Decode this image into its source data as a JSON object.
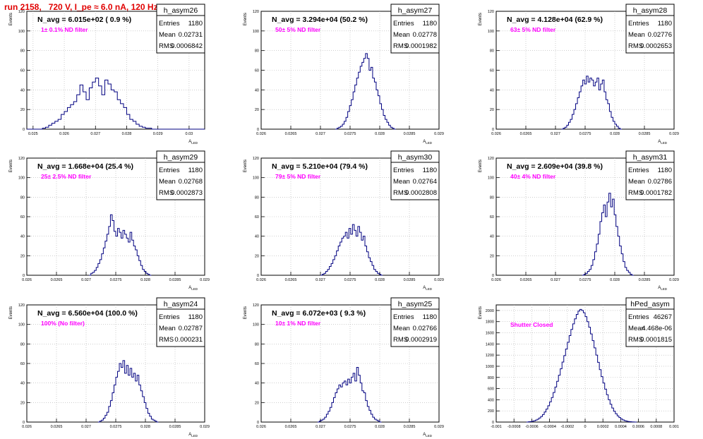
{
  "header": {
    "title": "run 2158,   720 V, I_pe ≈ 6.0 nA, 120 Hz"
  },
  "colors": {
    "hist": "#000080",
    "annotation": "#ff00ff",
    "title": "#e00000",
    "frame": "#000000"
  },
  "chart_data": [
    {
      "type": "histogram",
      "name": "h_asym26",
      "stats": {
        "Entries": "1180",
        "Mean": "0.02731",
        "RMS": "0.0006842"
      },
      "navg_text": "N_avg = 6.015e+02 ( 0.9 %)",
      "filter_text": "1± 0.1% ND filter",
      "xlabel": "A_LED",
      "ylabel": "Events",
      "xlim": [
        0.0248,
        0.0305
      ],
      "ylim": [
        0,
        120
      ],
      "xticks": [
        0.025,
        0.026,
        0.027,
        0.028,
        0.029,
        0.03
      ],
      "xtick_labels": [
        "0.025",
        "0.026",
        "0.027",
        "0.028",
        "0.029",
        "0.03"
      ],
      "yticks": [
        0,
        20,
        40,
        60,
        80,
        100,
        120
      ],
      "ytick_labels": [
        "0",
        "20",
        "40",
        "60",
        "80",
        "100",
        "120"
      ],
      "bin_start": 0.0248,
      "bin_width": 0.0001,
      "values": [
        0,
        0,
        0,
        0,
        0,
        1,
        2,
        4,
        6,
        8,
        10,
        15,
        18,
        22,
        25,
        28,
        35,
        45,
        38,
        30,
        42,
        48,
        52,
        44,
        35,
        50,
        46,
        40,
        38,
        30,
        26,
        22,
        15,
        10,
        8,
        5,
        3,
        2,
        1,
        1,
        0,
        0,
        0,
        0,
        0,
        0,
        0,
        0,
        0,
        0,
        0,
        0,
        0,
        0,
        0,
        0,
        0
      ]
    },
    {
      "type": "histogram",
      "name": "h_asym27",
      "stats": {
        "Entries": "1180",
        "Mean": "0.02778",
        "RMS": "0.0001982"
      },
      "navg_text": "N_avg = 3.294e+04 (50.2 %)",
      "filter_text": "50± 5% ND filter",
      "xlabel": "A_LED",
      "ylabel": "Events",
      "xlim": [
        0.026,
        0.029
      ],
      "ylim": [
        0,
        120
      ],
      "xticks": [
        0.026,
        0.0265,
        0.027,
        0.0275,
        0.028,
        0.0285,
        0.029
      ],
      "xtick_labels": [
        "0.026",
        "0.0265",
        "0.027",
        "0.0275",
        "0.028",
        "0.0285",
        "0.029"
      ],
      "yticks": [
        0,
        20,
        40,
        60,
        80,
        100,
        120
      ],
      "ytick_labels": [
        "0",
        "20",
        "40",
        "60",
        "80",
        "100",
        "120"
      ],
      "bin_start": 0.02725,
      "bin_width": 3e-05,
      "values": [
        0,
        1,
        2,
        3,
        5,
        8,
        12,
        18,
        24,
        30,
        38,
        45,
        52,
        58,
        64,
        68,
        72,
        77,
        72,
        60,
        63,
        52,
        48,
        40,
        34,
        26,
        20,
        14,
        10,
        7,
        4,
        2,
        1,
        0
      ]
    },
    {
      "type": "histogram",
      "name": "h_asym28",
      "stats": {
        "Entries": "1180",
        "Mean": "0.02776",
        "RMS": "0.0002653"
      },
      "navg_text": "N_avg = 4.128e+04 (62.9 %)",
      "filter_text": "63± 5% ND filter",
      "xlabel": "A_LED",
      "ylabel": "Events",
      "xlim": [
        0.026,
        0.029
      ],
      "ylim": [
        0,
        120
      ],
      "xticks": [
        0.026,
        0.0265,
        0.027,
        0.0275,
        0.028,
        0.0285,
        0.029
      ],
      "xtick_labels": [
        "0.026",
        "0.0265",
        "0.027",
        "0.0275",
        "0.028",
        "0.0285",
        "0.029"
      ],
      "yticks": [
        0,
        20,
        40,
        60,
        80,
        100,
        120
      ],
      "ytick_labels": [
        "0",
        "20",
        "40",
        "60",
        "80",
        "100",
        "120"
      ],
      "bin_start": 0.0271,
      "bin_width": 3e-05,
      "values": [
        0,
        1,
        2,
        4,
        7,
        10,
        15,
        20,
        26,
        32,
        38,
        44,
        50,
        46,
        54,
        48,
        52,
        50,
        44,
        48,
        52,
        40,
        46,
        50,
        38,
        30,
        26,
        18,
        12,
        8,
        5,
        3,
        1,
        0
      ]
    },
    {
      "type": "histogram",
      "name": "h_asym29",
      "stats": {
        "Entries": "1180",
        "Mean": "0.02768",
        "RMS": "0.0002873"
      },
      "navg_text": "N_avg = 1.668e+04 (25.4 %)",
      "filter_text": "25± 2.5% ND filter",
      "xlabel": "A_LED",
      "ylabel": "Events",
      "xlim": [
        0.026,
        0.029
      ],
      "ylim": [
        0,
        120
      ],
      "xticks": [
        0.026,
        0.0265,
        0.027,
        0.0275,
        0.028,
        0.0285,
        0.029
      ],
      "xtick_labels": [
        "0.026",
        "0.0265",
        "0.027",
        "0.0275",
        "0.028",
        "0.0285",
        "0.029"
      ],
      "yticks": [
        0,
        20,
        40,
        60,
        80,
        100,
        120
      ],
      "ytick_labels": [
        "0",
        "20",
        "40",
        "60",
        "80",
        "100",
        "120"
      ],
      "bin_start": 0.02705,
      "bin_width": 3e-05,
      "values": [
        0,
        2,
        3,
        5,
        8,
        12,
        16,
        22,
        28,
        35,
        42,
        50,
        62,
        56,
        45,
        40,
        48,
        44,
        38,
        46,
        42,
        38,
        34,
        44,
        36,
        30,
        26,
        20,
        15,
        10,
        6,
        4,
        2,
        1,
        0
      ]
    },
    {
      "type": "histogram",
      "name": "h_asym30",
      "stats": {
        "Entries": "1180",
        "Mean": "0.02764",
        "RMS": "0.0002808"
      },
      "navg_text": "N_avg = 5.210e+04 (79.4 %)",
      "filter_text": "79± 5% ND filter",
      "xlabel": "A_LED",
      "ylabel": "Events",
      "xlim": [
        0.026,
        0.029
      ],
      "ylim": [
        0,
        120
      ],
      "xticks": [
        0.026,
        0.0265,
        0.027,
        0.0275,
        0.028,
        0.0285,
        0.029
      ],
      "xtick_labels": [
        "0.026",
        "0.0265",
        "0.027",
        "0.0275",
        "0.028",
        "0.0285",
        "0.029"
      ],
      "yticks": [
        0,
        20,
        40,
        60,
        80,
        100,
        120
      ],
      "ytick_labels": [
        "0",
        "20",
        "40",
        "60",
        "80",
        "100",
        "120"
      ],
      "bin_start": 0.027,
      "bin_width": 3e-05,
      "values": [
        0,
        1,
        2,
        4,
        6,
        9,
        12,
        16,
        20,
        25,
        30,
        34,
        38,
        40,
        44,
        38,
        48,
        42,
        52,
        46,
        40,
        50,
        44,
        36,
        40,
        30,
        24,
        18,
        14,
        10,
        6,
        4,
        2,
        1,
        0
      ]
    },
    {
      "type": "histogram",
      "name": "h_asym31",
      "stats": {
        "Entries": "1180",
        "Mean": "0.02786",
        "RMS": "0.0001782"
      },
      "navg_text": "N_avg = 2.609e+04 (39.8 %)",
      "filter_text": "40± 4% ND filter",
      "xlabel": "A_LED",
      "ylabel": "Events",
      "xlim": [
        0.026,
        0.029
      ],
      "ylim": [
        0,
        120
      ],
      "xticks": [
        0.026,
        0.0265,
        0.027,
        0.0275,
        0.028,
        0.0285,
        0.029
      ],
      "xtick_labels": [
        "0.026",
        "0.0265",
        "0.027",
        "0.0275",
        "0.028",
        "0.0285",
        "0.029"
      ],
      "yticks": [
        0,
        20,
        40,
        60,
        80,
        100,
        120
      ],
      "ytick_labels": [
        "0",
        "20",
        "40",
        "60",
        "80",
        "100",
        "120"
      ],
      "bin_start": 0.02745,
      "bin_width": 3e-05,
      "values": [
        0,
        1,
        2,
        4,
        6,
        10,
        16,
        24,
        32,
        42,
        55,
        64,
        72,
        60,
        75,
        84,
        70,
        78,
        62,
        50,
        40,
        30,
        22,
        14,
        8,
        5,
        3,
        1,
        0
      ]
    },
    {
      "type": "histogram",
      "name": "h_asym24",
      "stats": {
        "Entries": "1180",
        "Mean": "0.02787",
        "RMS": "0.000231"
      },
      "navg_text": "N_avg = 6.560e+04 (100.0 %)",
      "filter_text": "100% (No filter)",
      "xlabel": "A_LED",
      "ylabel": "Events",
      "xlim": [
        0.026,
        0.029
      ],
      "ylim": [
        0,
        120
      ],
      "xticks": [
        0.026,
        0.0265,
        0.027,
        0.0275,
        0.028,
        0.0285,
        0.029
      ],
      "xtick_labels": [
        "0.026",
        "0.0265",
        "0.027",
        "0.0275",
        "0.028",
        "0.0285",
        "0.029"
      ],
      "yticks": [
        0,
        20,
        40,
        60,
        80,
        100,
        120
      ],
      "ytick_labels": [
        "0",
        "20",
        "40",
        "60",
        "80",
        "100",
        "120"
      ],
      "bin_start": 0.0272,
      "bin_width": 3e-05,
      "values": [
        0,
        1,
        2,
        4,
        7,
        10,
        16,
        22,
        30,
        38,
        46,
        52,
        60,
        56,
        63,
        50,
        58,
        48,
        55,
        46,
        50,
        42,
        48,
        38,
        32,
        26,
        20,
        14,
        9,
        6,
        3,
        2,
        1,
        0
      ]
    },
    {
      "type": "histogram",
      "name": "h_asym25",
      "stats": {
        "Entries": "1180",
        "Mean": "0.02766",
        "RMS": "0.0002919"
      },
      "navg_text": "N_avg = 6.072e+03 ( 9.3 %)",
      "filter_text": "10± 1% ND filter",
      "xlabel": "A_LED",
      "ylabel": "Events",
      "xlim": [
        0.026,
        0.029
      ],
      "ylim": [
        0,
        120
      ],
      "xticks": [
        0.026,
        0.0265,
        0.027,
        0.0275,
        0.028,
        0.0285,
        0.029
      ],
      "xtick_labels": [
        "0.026",
        "0.0265",
        "0.027",
        "0.0275",
        "0.028",
        "0.0285",
        "0.029"
      ],
      "yticks": [
        0,
        20,
        40,
        60,
        80,
        100,
        120
      ],
      "ytick_labels": [
        "0",
        "20",
        "40",
        "60",
        "80",
        "100",
        "120"
      ],
      "bin_start": 0.02695,
      "bin_width": 3e-05,
      "values": [
        0,
        1,
        2,
        3,
        5,
        8,
        11,
        15,
        20,
        25,
        30,
        34,
        38,
        36,
        40,
        42,
        38,
        44,
        40,
        46,
        50,
        42,
        56,
        48,
        40,
        32,
        30,
        22,
        16,
        12,
        8,
        5,
        3,
        2,
        1,
        0
      ]
    },
    {
      "type": "histogram",
      "name": "hPed_asym",
      "stats": {
        "Entries": "46267",
        "Mean": "4.468e-06",
        "RMS": "0.0001815"
      },
      "navg_text": "",
      "filter_text": "Shutter Closed",
      "xlabel": "",
      "ylabel": "Events",
      "xlim": [
        -0.001,
        0.001
      ],
      "ylim": [
        0,
        2100
      ],
      "xticks": [
        -0.001,
        -0.0008,
        -0.0006,
        -0.0004,
        -0.0002,
        0,
        0.0002,
        0.0004,
        0.0006,
        0.0008,
        0.001
      ],
      "xtick_labels": [
        "-0.001",
        "-0.0008",
        "-0.0006",
        "-0.0004",
        "-0.0002",
        "0",
        "0.0002",
        "0.0004",
        "0.0006",
        "0.0008",
        "0.001"
      ],
      "yticks": [
        0,
        200,
        400,
        600,
        800,
        1000,
        1200,
        1400,
        1600,
        1800,
        2000
      ],
      "ytick_labels": [
        "0",
        "200",
        "400",
        "600",
        "800",
        "1000",
        "1200",
        "1400",
        "1600",
        "1800",
        "2000"
      ],
      "bin_start": -0.00066,
      "bin_width": 2e-05,
      "values": [
        0,
        4,
        8,
        14,
        22,
        34,
        50,
        72,
        100,
        135,
        180,
        232,
        292,
        362,
        440,
        530,
        628,
        730,
        840,
        955,
        1075,
        1190,
        1310,
        1430,
        1550,
        1660,
        1760,
        1850,
        1930,
        1990,
        2020,
        2000,
        1960,
        1890,
        1800,
        1700,
        1580,
        1460,
        1330,
        1200,
        1070,
        940,
        815,
        700,
        590,
        490,
        400,
        320,
        252,
        195,
        148,
        110,
        80,
        56,
        38,
        25,
        16,
        10,
        6,
        3,
        1,
        0
      ]
    }
  ]
}
